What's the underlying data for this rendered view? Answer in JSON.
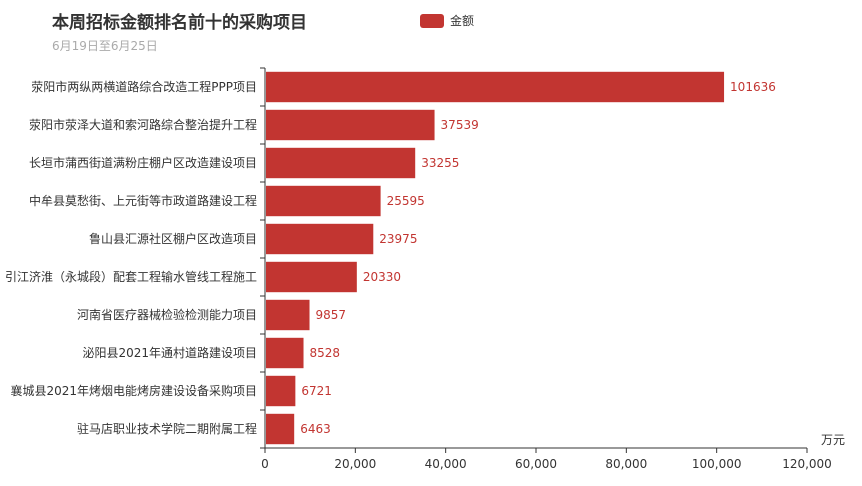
{
  "chart_data": {
    "type": "bar",
    "orientation": "horizontal",
    "title": "本周招标金额排名前十的采购项目",
    "subtitle": "6月19日至6月25日",
    "legend": [
      "金额"
    ],
    "legend_position": "top",
    "x_unit": "万元",
    "xlim": [
      0,
      120000
    ],
    "x_ticks": [
      "0",
      "20,000",
      "40,000",
      "60,000",
      "80,000",
      "100,000",
      "120,000"
    ],
    "categories": [
      "荥阳市两纵两横道路综合改造工程PPP项目",
      "荥阳市荥泽大道和索河路综合整治提升工程",
      "长垣市蒲西街道满粉庄棚户区改造建设项目",
      "中牟县莫愁街、上元街等市政道路建设工程",
      "鲁山县汇源社区棚户区改造项目",
      "引江济淮（永城段）配套工程输水管线工程施工",
      "河南省医疗器械检验检测能力项目",
      "泌阳县2021年通村道路建设项目",
      "襄城县2021年烤烟电能烤房建设设备采购项目",
      "驻马店职业技术学院二期附属工程"
    ],
    "series": [
      {
        "name": "金额",
        "color": "#c23531",
        "values": [
          101636,
          37539,
          33255,
          25595,
          23975,
          20330,
          9857,
          8528,
          6721,
          6463
        ]
      }
    ],
    "grid": false
  }
}
